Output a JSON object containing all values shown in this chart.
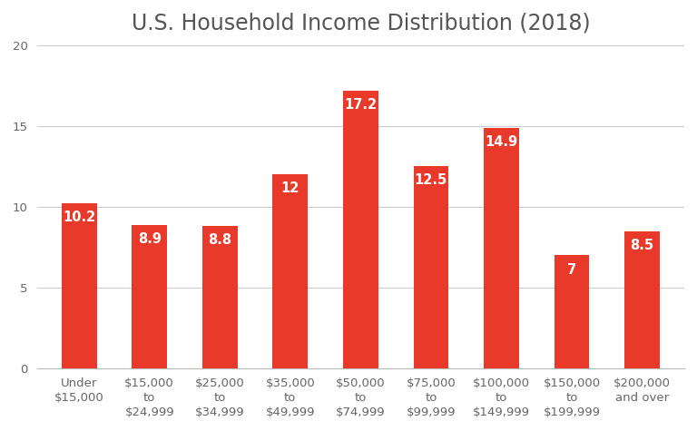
{
  "title": "U.S. Household Income Distribution (2018)",
  "categories": [
    "Under\n$15,000",
    "$15,000\nto\n$24,999",
    "$25,000\nto\n$34,999",
    "$35,000\nto\n$49,999",
    "$50,000\nto\n$74,999",
    "$75,000\nto\n$99,999",
    "$100,000\nto\n$149,999",
    "$150,000\nto\n$199,999",
    "$200,000\nand over"
  ],
  "values": [
    10.2,
    8.9,
    8.8,
    12.0,
    17.2,
    12.5,
    14.9,
    7.0,
    8.5
  ],
  "bar_color": "#e8392a",
  "label_color": "#ffffff",
  "background_color": "#ffffff",
  "title_color": "#555555",
  "tick_color": "#666666",
  "grid_color": "#cccccc",
  "ylim": [
    0,
    20
  ],
  "yticks": [
    0,
    5,
    10,
    15,
    20
  ],
  "title_fontsize": 17,
  "label_fontsize": 10.5,
  "tick_fontsize": 9.5,
  "bar_width": 0.5
}
